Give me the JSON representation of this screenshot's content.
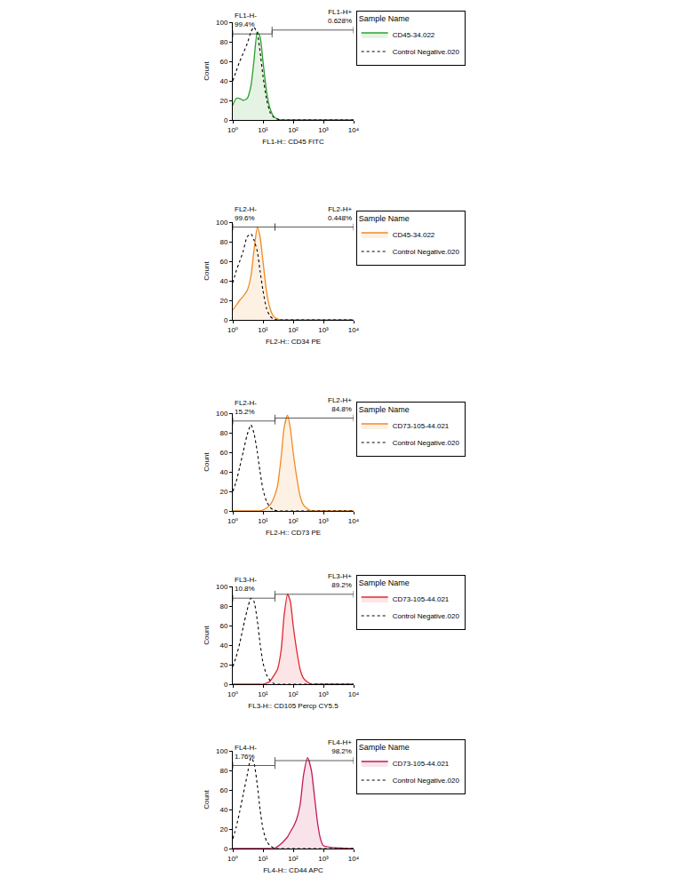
{
  "chart_data": [
    {
      "type": "line",
      "x_label": "FL1-H:: CD45 FITC",
      "y_label": "Count",
      "log": "x",
      "grid": false,
      "legend": "right",
      "legend_title": "Sample Name",
      "x": [
        1,
        1.3,
        1.7,
        2.2,
        3,
        4,
        5,
        6.5,
        8,
        10,
        13,
        17,
        22,
        30,
        40,
        50,
        65,
        80,
        100,
        130,
        170,
        220,
        300,
        400,
        500,
        650,
        800,
        1000,
        10000
      ],
      "xlim": [
        1,
        10000
      ],
      "xticks": [
        {
          "value": 1,
          "label": "10⁰"
        },
        {
          "value": 10,
          "label": "10¹"
        },
        {
          "value": 100,
          "label": "10²"
        },
        {
          "value": 1000,
          "label": "10³"
        },
        {
          "value": 10000,
          "label": "10⁴"
        }
      ],
      "ylim": [
        0,
        100
      ],
      "yticks": [
        0,
        20,
        40,
        60,
        80,
        100
      ],
      "series": [
        {
          "name": "CD45-34.022",
          "type": "area",
          "color": "#2ca02c",
          "line_style": "solid",
          "values": [
            15,
            22,
            22,
            20,
            22,
            35,
            60,
            90,
            85,
            60,
            30,
            12,
            4,
            1,
            0,
            0,
            0,
            0,
            0,
            0,
            0,
            0,
            0,
            0,
            0,
            0,
            0,
            0,
            0
          ]
        },
        {
          "name": "Control Negative.020",
          "type": "line",
          "color": "#000000",
          "line_style": "dotted",
          "values": [
            40,
            50,
            60,
            68,
            78,
            90,
            95,
            88,
            70,
            45,
            22,
            8,
            3,
            1,
            0,
            0,
            0,
            0,
            0,
            0,
            0,
            0,
            0,
            0,
            0,
            0,
            0,
            0,
            0
          ]
        }
      ],
      "gates": [
        {
          "label": "FL1-H-",
          "percent": "99.4%",
          "from": 1,
          "to": 20,
          "y": 88
        },
        {
          "label": "FL1-H+",
          "percent": "0.628%",
          "from": 20,
          "to": 10000,
          "y": 92
        }
      ]
    },
    {
      "type": "line",
      "x_label": "FL2-H:: CD34 PE",
      "y_label": "Count",
      "log": "x",
      "grid": false,
      "legend": "right",
      "legend_title": "Sample Name",
      "x": [
        1,
        1.3,
        1.7,
        2.2,
        3,
        4,
        5,
        6.5,
        8,
        10,
        13,
        17,
        22,
        30,
        40,
        50,
        65,
        80,
        100,
        130,
        170,
        220,
        300,
        400,
        500,
        650,
        800,
        1000,
        10000
      ],
      "xlim": [
        1,
        10000
      ],
      "xticks": [
        {
          "value": 1,
          "label": "10⁰"
        },
        {
          "value": 10,
          "label": "10¹"
        },
        {
          "value": 100,
          "label": "10²"
        },
        {
          "value": 1000,
          "label": "10³"
        },
        {
          "value": 10000,
          "label": "10⁴"
        }
      ],
      "ylim": [
        0,
        100
      ],
      "yticks": [
        0,
        20,
        40,
        60,
        80,
        100
      ],
      "series": [
        {
          "name": "CD45-34.022",
          "type": "area",
          "color": "#f08a24",
          "line_style": "solid",
          "values": [
            10,
            15,
            20,
            24,
            30,
            45,
            70,
            95,
            85,
            60,
            30,
            12,
            4,
            1,
            0,
            0,
            0,
            0,
            0,
            0,
            0,
            0,
            0,
            0,
            0,
            0,
            0,
            0,
            0
          ]
        },
        {
          "name": "Control Negative.020",
          "type": "line",
          "color": "#000000",
          "line_style": "dotted",
          "values": [
            38,
            50,
            60,
            70,
            85,
            88,
            82,
            70,
            50,
            30,
            12,
            4,
            1,
            0,
            0,
            0,
            0,
            0,
            0,
            0,
            0,
            0,
            0,
            0,
            0,
            0,
            0,
            0,
            0
          ]
        }
      ],
      "gates": [
        {
          "label": "FL2-H-",
          "percent": "99.6%",
          "from": 1,
          "to": 25,
          "y": 95
        },
        {
          "label": "FL2-H+",
          "percent": "0.448%",
          "from": 25,
          "to": 10000,
          "y": 95
        }
      ]
    },
    {
      "type": "line",
      "x_label": "FL2-H:: CD73 PE",
      "y_label": "Count",
      "log": "x",
      "grid": false,
      "legend": "right",
      "legend_title": "Sample Name",
      "x": [
        1,
        1.3,
        1.7,
        2.2,
        3,
        4,
        5,
        6.5,
        8,
        10,
        13,
        17,
        22,
        30,
        40,
        50,
        65,
        80,
        100,
        130,
        170,
        220,
        300,
        400,
        500,
        650,
        800,
        1000,
        10000
      ],
      "xlim": [
        1,
        10000
      ],
      "xticks": [
        {
          "value": 1,
          "label": "10⁰"
        },
        {
          "value": 10,
          "label": "10¹"
        },
        {
          "value": 100,
          "label": "10²"
        },
        {
          "value": 1000,
          "label": "10³"
        },
        {
          "value": 10000,
          "label": "10⁴"
        }
      ],
      "ylim": [
        0,
        100
      ],
      "yticks": [
        0,
        20,
        40,
        60,
        80,
        100
      ],
      "series": [
        {
          "name": "CD73-105-44.021",
          "type": "area",
          "color": "#f08a24",
          "line_style": "solid",
          "values": [
            0,
            0,
            0,
            0,
            0,
            0,
            0,
            0,
            0,
            1,
            3,
            6,
            12,
            25,
            55,
            85,
            98,
            85,
            60,
            35,
            15,
            6,
            2,
            0,
            0,
            0,
            0,
            0,
            0
          ]
        },
        {
          "name": "Control Negative.020",
          "type": "line",
          "color": "#000000",
          "line_style": "dotted",
          "values": [
            20,
            30,
            45,
            60,
            78,
            88,
            80,
            60,
            40,
            22,
            10,
            4,
            1,
            0,
            0,
            0,
            0,
            0,
            0,
            0,
            0,
            0,
            0,
            0,
            0,
            0,
            0,
            0,
            0
          ]
        }
      ],
      "gates": [
        {
          "label": "FL2-H-",
          "percent": "15.2%",
          "from": 1,
          "to": 25,
          "y": 92
        },
        {
          "label": "FL2-H+",
          "percent": "84.8%",
          "from": 25,
          "to": 10000,
          "y": 95
        }
      ]
    },
    {
      "type": "line",
      "x_label": "FL3-H:: CD105 Percp CY5.5",
      "y_label": "Count",
      "log": "x",
      "grid": false,
      "legend": "right",
      "legend_title": "Sample Name",
      "x": [
        1,
        1.3,
        1.7,
        2.2,
        3,
        4,
        5,
        6.5,
        8,
        10,
        13,
        17,
        22,
        30,
        40,
        50,
        65,
        80,
        100,
        130,
        170,
        220,
        300,
        400,
        500,
        650,
        800,
        1000,
        10000
      ],
      "xlim": [
        1,
        10000
      ],
      "xticks": [
        {
          "value": 1,
          "label": "10⁰"
        },
        {
          "value": 10,
          "label": "10¹"
        },
        {
          "value": 100,
          "label": "10²"
        },
        {
          "value": 1000,
          "label": "10³"
        },
        {
          "value": 10000,
          "label": "10⁴"
        }
      ],
      "ylim": [
        0,
        100
      ],
      "yticks": [
        0,
        20,
        40,
        60,
        80,
        100
      ],
      "series": [
        {
          "name": "CD73-105-44.021",
          "type": "area",
          "color": "#e3262e",
          "line_style": "solid",
          "values": [
            0,
            0,
            0,
            0,
            0,
            0,
            0,
            0,
            0,
            0,
            1,
            3,
            8,
            15,
            35,
            70,
            92,
            85,
            60,
            35,
            15,
            6,
            2,
            0,
            0,
            0,
            0,
            0,
            0
          ]
        },
        {
          "name": "Control Negative.020",
          "type": "line",
          "color": "#000000",
          "line_style": "dotted",
          "values": [
            18,
            28,
            42,
            58,
            76,
            88,
            85,
            65,
            42,
            22,
            10,
            4,
            1,
            0,
            0,
            0,
            0,
            0,
            0,
            0,
            0,
            0,
            0,
            0,
            0,
            0,
            0,
            0,
            0
          ]
        }
      ],
      "gates": [
        {
          "label": "FL3-H-",
          "percent": "10.8%",
          "from": 1,
          "to": 25,
          "y": 88
        },
        {
          "label": "FL3-H+",
          "percent": "89.2%",
          "from": 25,
          "to": 10000,
          "y": 92
        }
      ]
    },
    {
      "type": "line",
      "x_label": "FL4-H:: CD44 APC",
      "y_label": "Count",
      "log": "x",
      "grid": false,
      "legend": "right",
      "legend_title": "Sample Name",
      "x": [
        1,
        1.3,
        1.7,
        2.2,
        3,
        4,
        5,
        6.5,
        8,
        10,
        13,
        17,
        22,
        30,
        40,
        50,
        65,
        80,
        100,
        130,
        170,
        220,
        300,
        400,
        500,
        650,
        800,
        1000,
        10000
      ],
      "xlim": [
        1,
        10000
      ],
      "xticks": [
        {
          "value": 1,
          "label": "10⁰"
        },
        {
          "value": 10,
          "label": "10¹"
        },
        {
          "value": 100,
          "label": "10²"
        },
        {
          "value": 1000,
          "label": "10³"
        },
        {
          "value": 10000,
          "label": "10⁴"
        }
      ],
      "ylim": [
        0,
        100
      ],
      "yticks": [
        0,
        20,
        40,
        60,
        80,
        100
      ],
      "series": [
        {
          "name": "CD73-105-44.021",
          "type": "area",
          "color": "#c2185b",
          "line_style": "solid",
          "values": [
            0,
            0,
            0,
            0,
            0,
            0,
            0,
            0,
            0,
            0,
            0,
            0,
            0,
            2,
            5,
            8,
            12,
            17,
            22,
            30,
            45,
            75,
            93,
            80,
            55,
            25,
            10,
            3,
            0
          ]
        },
        {
          "name": "Control Negative.020",
          "type": "line",
          "color": "#000000",
          "line_style": "dotted",
          "values": [
            10,
            22,
            38,
            55,
            75,
            93,
            88,
            65,
            40,
            20,
            8,
            3,
            1,
            0,
            0,
            0,
            0,
            0,
            0,
            0,
            0,
            0,
            0,
            0,
            0,
            0,
            0,
            0,
            0
          ]
        }
      ],
      "gates": [
        {
          "label": "FL4-H-",
          "percent": "1.76%",
          "from": 1,
          "to": 25,
          "y": 85
        },
        {
          "label": "FL4-H+",
          "percent": "98.2%",
          "from": 25,
          "to": 10000,
          "y": 90
        }
      ]
    }
  ]
}
